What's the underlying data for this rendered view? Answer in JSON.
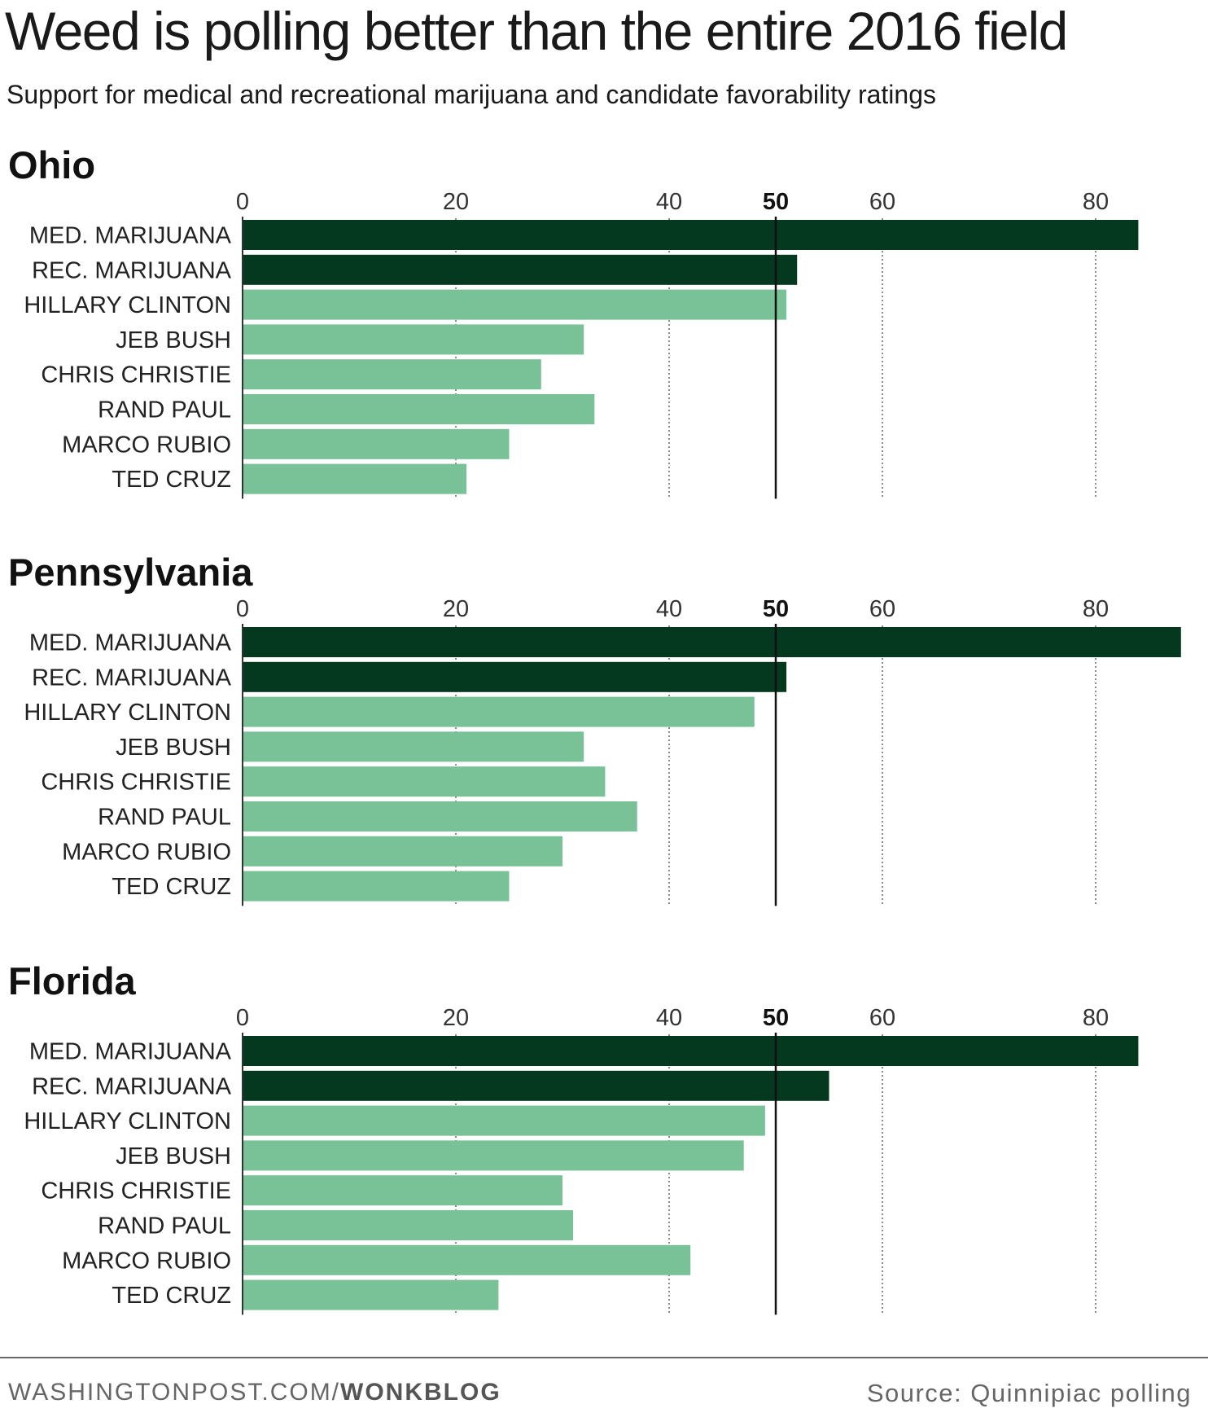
{
  "header": {
    "title": "Weed is polling better than the entire 2016 field",
    "subtitle": "Support for medical and recreational marijuana and candidate favorability ratings"
  },
  "colors": {
    "marijuana": "#04391f",
    "candidate": "#79c297",
    "gridline": "#666666",
    "fifty_line": "#111111"
  },
  "chart_data": [
    {
      "type": "bar",
      "orientation": "horizontal",
      "title": "Ohio",
      "xlim": [
        0,
        87
      ],
      "ticks": [
        0,
        20,
        40,
        50,
        60,
        80
      ],
      "highlight_tick": 50,
      "grid": "dotted vertical",
      "categories": [
        "MED. MARIJUANA",
        "REC. MARIJUANA",
        "HILLARY CLINTON",
        "JEB BUSH",
        "CHRIS CHRISTIE",
        "RAND PAUL",
        "MARCO RUBIO",
        "TED CRUZ"
      ],
      "values": [
        84,
        52,
        51,
        32,
        28,
        33,
        25,
        21
      ],
      "groups": [
        "marijuana",
        "marijuana",
        "candidate",
        "candidate",
        "candidate",
        "candidate",
        "candidate",
        "candidate"
      ]
    },
    {
      "type": "bar",
      "orientation": "horizontal",
      "title": "Pennsylvania",
      "xlim": [
        0,
        87
      ],
      "ticks": [
        0,
        20,
        40,
        50,
        60,
        80
      ],
      "highlight_tick": 50,
      "grid": "dotted vertical",
      "categories": [
        "MED. MARIJUANA",
        "REC. MARIJUANA",
        "HILLARY CLINTON",
        "JEB BUSH",
        "CHRIS CHRISTIE",
        "RAND PAUL",
        "MARCO RUBIO",
        "TED CRUZ"
      ],
      "values": [
        88,
        51,
        48,
        32,
        34,
        37,
        30,
        25
      ],
      "groups": [
        "marijuana",
        "marijuana",
        "candidate",
        "candidate",
        "candidate",
        "candidate",
        "candidate",
        "candidate"
      ]
    },
    {
      "type": "bar",
      "orientation": "horizontal",
      "title": "Florida",
      "xlim": [
        0,
        87
      ],
      "ticks": [
        0,
        20,
        40,
        50,
        60,
        80
      ],
      "highlight_tick": 50,
      "grid": "dotted vertical",
      "categories": [
        "MED. MARIJUANA",
        "REC. MARIJUANA",
        "HILLARY CLINTON",
        "JEB BUSH",
        "CHRIS CHRISTIE",
        "RAND PAUL",
        "MARCO RUBIO",
        "TED CRUZ"
      ],
      "values": [
        84,
        55,
        49,
        47,
        30,
        31,
        42,
        24
      ],
      "groups": [
        "marijuana",
        "marijuana",
        "candidate",
        "candidate",
        "candidate",
        "candidate",
        "candidate",
        "candidate"
      ]
    }
  ],
  "footer": {
    "site": "WASHINGTONPOST.COM/",
    "brand": "WONKBLOG",
    "source": "Source: Quinnipiac polling"
  }
}
